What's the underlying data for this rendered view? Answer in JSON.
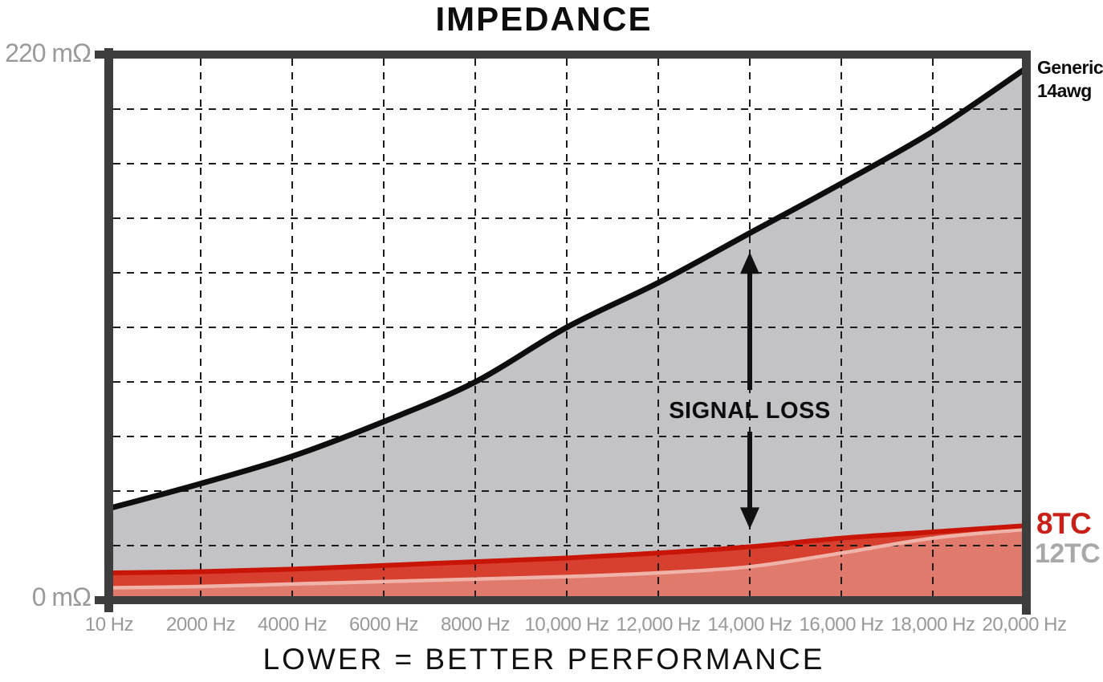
{
  "title": "IMPEDANCE",
  "caption": "LOWER = BETTER PERFORMANCE",
  "y_axis": {
    "top_label": "220 mΩ",
    "bottom_label": "0 mΩ"
  },
  "annotations": {
    "signal_loss": "SIGNAL LOSS",
    "generic_line1": "Generic",
    "generic_line2": "14awg",
    "series_8tc": "8TC",
    "series_12tc": "12TC"
  },
  "colors": {
    "black_line": "#0e0e0e",
    "gray_fill": "#c3c3c5",
    "red_line_8tc": "#c81508",
    "mid_red_fill": "#d7402e",
    "pink_line_12tc": "#f0b3aa",
    "salmon_fill": "#e07a6c",
    "axis_border": "#3d3d3d",
    "gridline": "#1b1b1b",
    "axis_label_gray": "#9a9a9a",
    "label_8tc": "#c9201a",
    "label_12tc": "#a8a8a8"
  },
  "chart_data": {
    "type": "area",
    "title": "IMPEDANCE",
    "xlabel": "LOWER = BETTER PERFORMANCE",
    "y_unit": "mΩ",
    "ylim": [
      0,
      220
    ],
    "gridline_step_mohm": 22,
    "grid": "dashed",
    "x_scale": "even-spacing",
    "x_hz": [
      10,
      2000,
      4000,
      6000,
      8000,
      10000,
      12000,
      14000,
      16000,
      18000,
      20000
    ],
    "x_tick_labels": [
      "10 Hz",
      "2000 Hz",
      "4000 Hz",
      "6000 Hz",
      "8000 Hz",
      "10,000 Hz",
      "12,000 Hz",
      "14,000 Hz",
      "16,000 Hz",
      "18,000 Hz",
      "20,000 Hz"
    ],
    "series": [
      {
        "name": "Generic 14awg",
        "values_mohm": [
          37,
          47,
          58,
          72,
          88,
          110,
          128,
          148,
          168,
          189,
          214
        ]
      },
      {
        "name": "8TC",
        "values_mohm": [
          11,
          11.5,
          12.5,
          14,
          15.5,
          17,
          19,
          21.5,
          25,
          27.5,
          30
        ]
      },
      {
        "name": "12TC",
        "values_mohm": [
          5,
          5.5,
          6.5,
          7.5,
          8.5,
          9.5,
          11,
          13.5,
          19,
          25,
          28.5
        ]
      }
    ],
    "annotation_arrow": {
      "label": "SIGNAL LOSS",
      "x_hz": 14000,
      "top_mohm": 140,
      "bottom_mohm": 29
    }
  }
}
